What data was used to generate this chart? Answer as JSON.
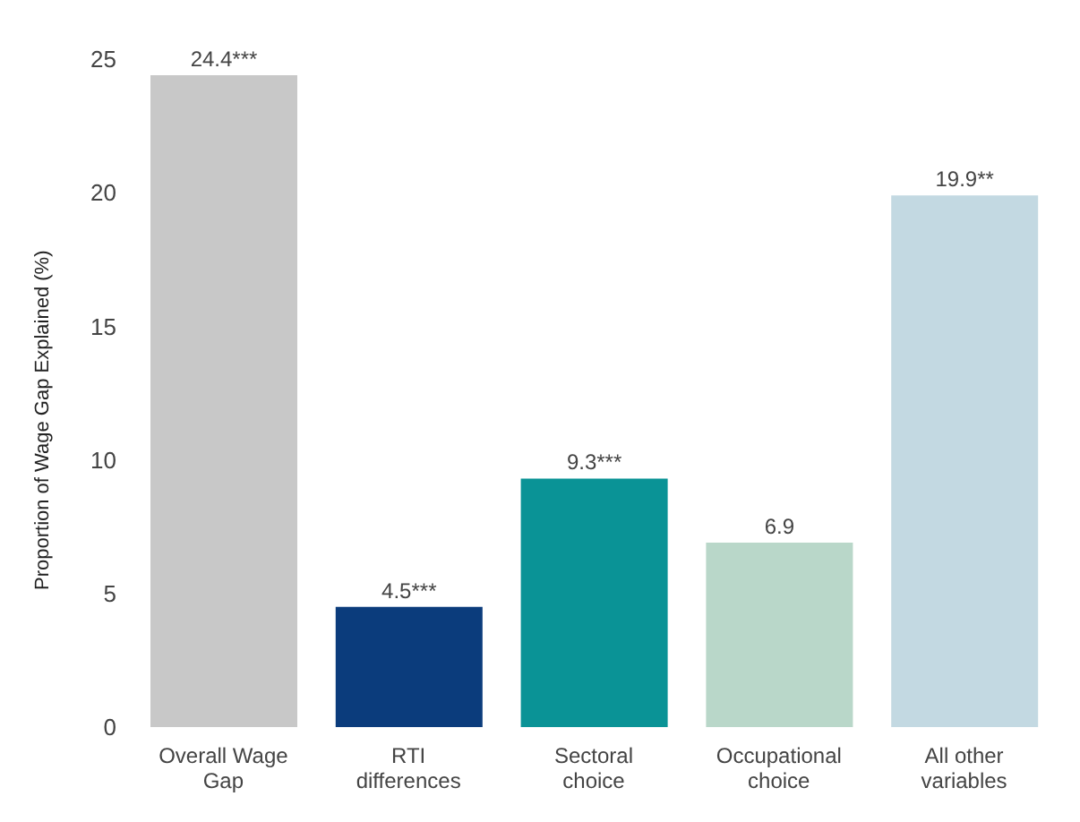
{
  "chart_data": {
    "type": "bar",
    "ylabel": "Proportion of Wage Gap Explained (%)",
    "categories": [
      "Overall Wage Gap",
      "RTI differences",
      "Sectoral choice",
      "Occupational choice",
      "All other variables"
    ],
    "values": [
      24.4,
      4.5,
      9.3,
      6.9,
      19.9
    ],
    "value_labels": [
      "24.4***",
      "4.5***",
      "9.3***",
      "6.9",
      "19.9**"
    ],
    "colors": [
      "#c8c8c8",
      "#0b3c7c",
      "#0a9396",
      "#b9d7c9",
      "#c3d9e2"
    ],
    "ylim": [
      0,
      25
    ],
    "yticks": [
      0,
      5,
      10,
      15,
      20,
      25
    ],
    "grid": false,
    "legend": false
  }
}
